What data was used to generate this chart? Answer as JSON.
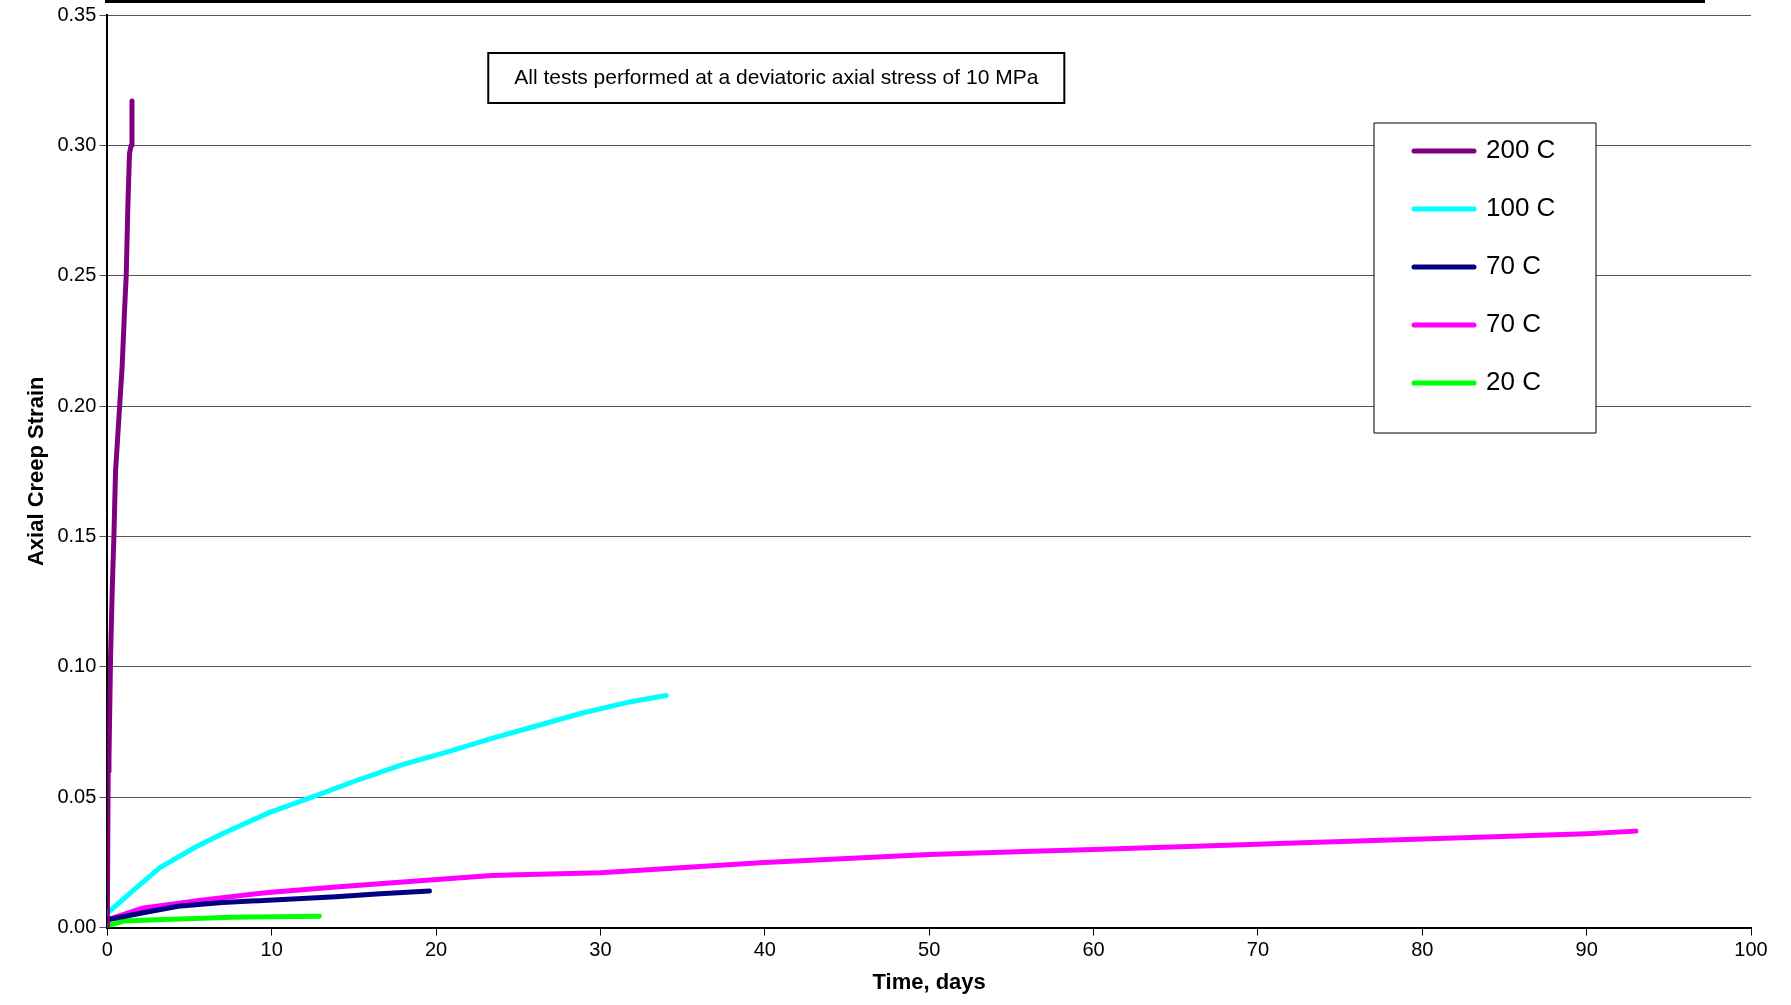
{
  "chart_data": {
    "type": "line",
    "xlabel": "Time, days",
    "ylabel": "Axial Creep Strain",
    "annotations": [
      "All tests performed at a deviatoric axial stress of 10 MPa"
    ],
    "xlim": [
      0,
      100
    ],
    "xticks": [
      0,
      10,
      20,
      30,
      40,
      50,
      60,
      70,
      80,
      90,
      100
    ],
    "ylim": [
      0,
      0.35
    ],
    "yticks": [
      {
        "value": 0,
        "label": "0.00"
      },
      {
        "value": 0.05,
        "label": "0.05"
      },
      {
        "value": 0.1,
        "label": "0.10"
      },
      {
        "value": 0.15,
        "label": "0.15"
      },
      {
        "value": 0.2,
        "label": "0.20"
      },
      {
        "value": 0.25,
        "label": "0.25"
      },
      {
        "value": 0.3,
        "label": "0.30"
      },
      {
        "value": 0.35,
        "label": "0.35"
      }
    ],
    "grid": "y",
    "legend": "top right",
    "marker": "none",
    "line_style": "solid",
    "series": [
      {
        "name": "200 C",
        "color": "#800080",
        "x": [
          0,
          0.05,
          0.1,
          0.2,
          0.3,
          0.4,
          0.5,
          0.7,
          0.9,
          1.05,
          1.15,
          1.25,
          1.35,
          1.45,
          1.5
        ],
        "values": [
          0,
          0.06,
          0.065,
          0.105,
          0.13,
          0.15,
          0.175,
          0.195,
          0.215,
          0.237,
          0.25,
          0.277,
          0.297,
          0.3,
          0.317
        ]
      },
      {
        "name": "100 C",
        "color": "#00ffff",
        "x": [
          0,
          1.6,
          3.2,
          5.4,
          7,
          9.8,
          12.2,
          15.2,
          18,
          20.7,
          23.4,
          26.2,
          28.9,
          31.6,
          34
        ],
        "values": [
          0.0056,
          0.0144,
          0.023,
          0.031,
          0.036,
          0.044,
          0.0495,
          0.0565,
          0.0626,
          0.0674,
          0.0726,
          0.0775,
          0.0823,
          0.0863,
          0.089
        ]
      },
      {
        "name": "70 C",
        "color": "#000080",
        "x": [
          0,
          2.1,
          4.3,
          7,
          9.8,
          13.9,
          16.6,
          19.6
        ],
        "values": [
          0.003,
          0.0056,
          0.0082,
          0.0096,
          0.0105,
          0.0118,
          0.013,
          0.014
        ]
      },
      {
        "name": "70 C",
        "color": "#ff00ff",
        "x": [
          0,
          2.1,
          5.7,
          9.8,
          13.9,
          18.8,
          23.4,
          30,
          40,
          50,
          60,
          70,
          80,
          90,
          93
        ],
        "values": [
          0.003,
          0.0074,
          0.0105,
          0.0135,
          0.0156,
          0.0179,
          0.02,
          0.021,
          0.025,
          0.028,
          0.03,
          0.032,
          0.034,
          0.036,
          0.037
        ]
      },
      {
        "name": "20 C",
        "color": "#00ff00",
        "x": [
          0,
          1,
          3,
          7.6,
          12.9
        ],
        "values": [
          0.0007,
          0.0025,
          0.003,
          0.004,
          0.0044
        ]
      }
    ]
  }
}
